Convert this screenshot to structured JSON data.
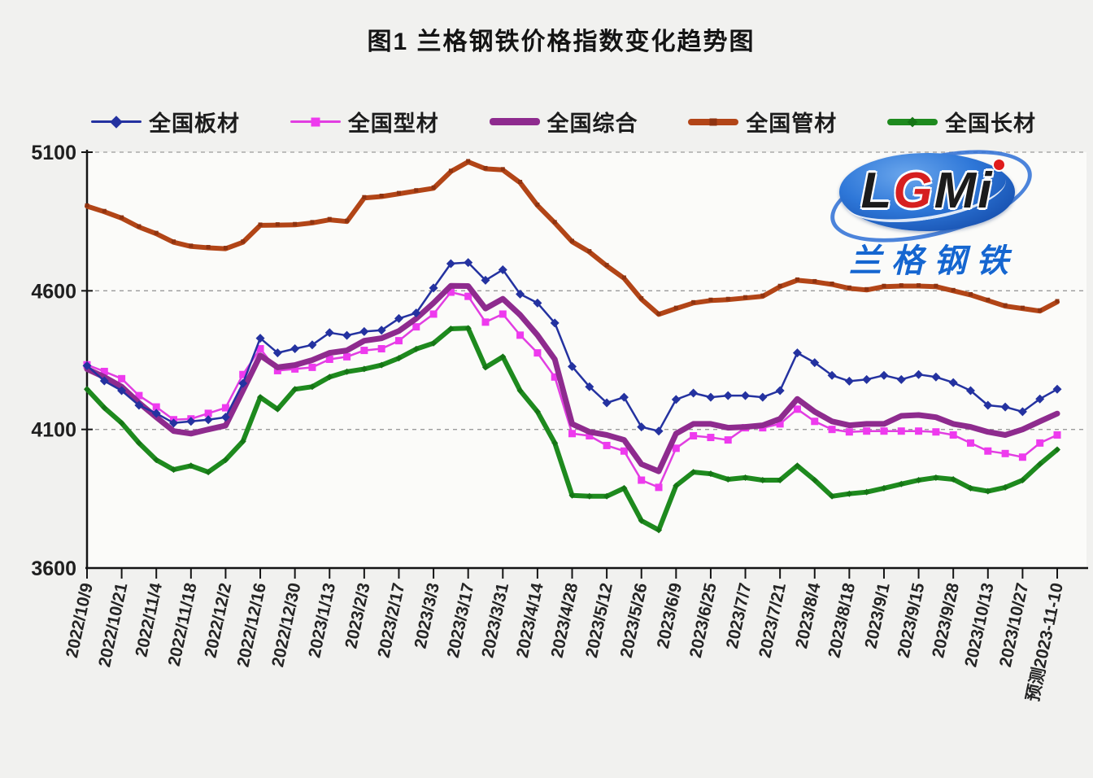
{
  "page": {
    "title": "图1 兰格钢铁价格指数变化趋势图"
  },
  "watermark": {
    "l": "L",
    "g": "G",
    "m": "M",
    "i": "i",
    "sub": "兰格钢铁"
  },
  "chart_data": {
    "type": "line",
    "title": "图1 兰格钢铁价格指数变化趋势图",
    "ylim": [
      3600,
      5100
    ],
    "yticks": [
      5100,
      4600,
      4100,
      3600
    ],
    "grid": "horizontal dashed at 5100/4600/4100, solid x-axis at 3600",
    "legend_position": "top",
    "x_labels": [
      "2022/10/9",
      "2022/10/21",
      "2022/11/4",
      "2022/11/18",
      "2022/12/2",
      "2022/12/16",
      "2022/12/30",
      "2023/1/13",
      "2023/2/3",
      "2023/2/17",
      "2023/3/3",
      "2023/3/17",
      "2023/3/31",
      "2023/4/14",
      "2023/4/28",
      "2023/5/12",
      "2023/5/26",
      "2023/6/9",
      "2023/6/25",
      "2023/7/7",
      "2023/7/21",
      "2023/8/4",
      "2023/8/18",
      "2023/9/1",
      "2023/9/15",
      "2023/9/28",
      "2023/10/13",
      "2023/10/27",
      "预测2023-11-10"
    ],
    "x_note": "labels sit on every second weekly data point (57 weekly points total); last point is a forecast",
    "series": [
      {
        "name": "全国板材",
        "color": "#2432a0",
        "marker": "diamond",
        "marker_color": "#2432a0",
        "width": 2.5,
        "values": [
          4330,
          4275,
          4240,
          4187,
          4158,
          4123,
          4129,
          4135,
          4144,
          4266,
          4429,
          4376,
          4391,
          4405,
          4449,
          4439,
          4453,
          4458,
          4500,
          4520,
          4610,
          4698,
          4702,
          4638,
          4676,
          4588,
          4556,
          4484,
          4327,
          4254,
          4196,
          4216,
          4109,
          4094,
          4208,
          4231,
          4216,
          4222,
          4222,
          4216,
          4240,
          4376,
          4341,
          4295,
          4274,
          4280,
          4295,
          4280,
          4298,
          4289,
          4269,
          4240,
          4187,
          4181,
          4164,
          4210,
          4245
        ]
      },
      {
        "name": "全国型材",
        "color": "#e13ee1",
        "marker": "square",
        "marker_color": "#ee3aee",
        "width": 2.5,
        "values": [
          4333,
          4309,
          4283,
          4222,
          4181,
          4135,
          4138,
          4158,
          4178,
          4298,
          4391,
          4312,
          4318,
          4324,
          4353,
          4362,
          4385,
          4391,
          4420,
          4470,
          4516,
          4595,
          4580,
          4487,
          4516,
          4440,
          4376,
          4289,
          4085,
          4077,
          4042,
          4022,
          3917,
          3891,
          4032,
          4077,
          4071,
          4062,
          4106,
          4106,
          4120,
          4173,
          4129,
          4100,
          4091,
          4094,
          4094,
          4094,
          4094,
          4091,
          4080,
          4051,
          4022,
          4013,
          4000,
          4051,
          4080
        ]
      },
      {
        "name": "全国综合",
        "color": "#8e2b8e",
        "marker": "none",
        "marker_color": "#8e2b8e",
        "width": 7,
        "values": [
          4318,
          4289,
          4254,
          4196,
          4144,
          4094,
          4085,
          4100,
          4114,
          4240,
          4367,
          4324,
          4332,
          4350,
          4376,
          4385,
          4420,
          4429,
          4455,
          4500,
          4556,
          4618,
          4617,
          4536,
          4571,
          4513,
          4440,
          4353,
          4120,
          4091,
          4080,
          4062,
          3975,
          3949,
          4085,
          4120,
          4120,
          4106,
          4109,
          4115,
          4138,
          4210,
          4164,
          4129,
          4115,
          4120,
          4120,
          4149,
          4152,
          4144,
          4120,
          4109,
          4091,
          4080,
          4100,
          4129,
          4157
        ]
      },
      {
        "name": "全国管材",
        "color": "#b24517",
        "marker": "small-square",
        "marker_color": "#8f3310",
        "width": 6,
        "values": [
          4905,
          4885,
          4862,
          4830,
          4806,
          4775,
          4760,
          4755,
          4752,
          4775,
          4836,
          4837,
          4838,
          4845,
          4856,
          4850,
          4935,
          4940,
          4950,
          4960,
          4970,
          5030,
          5065,
          5040,
          5036,
          4990,
          4908,
          4845,
          4777,
          4740,
          4690,
          4645,
          4570,
          4515,
          4536,
          4556,
          4565,
          4568,
          4574,
          4580,
          4615,
          4638,
          4632,
          4623,
          4609,
          4603,
          4615,
          4617,
          4617,
          4615,
          4600,
          4585,
          4565,
          4545,
          4536,
          4527,
          4560
        ]
      },
      {
        "name": "全国长材",
        "color": "#1e8a1e",
        "marker": "small-diamond",
        "marker_color": "#157515",
        "width": 6,
        "values": [
          4245,
          4178,
          4123,
          4051,
          3990,
          3955,
          3969,
          3946,
          3990,
          4057,
          4216,
          4173,
          4245,
          4254,
          4289,
          4308,
          4318,
          4332,
          4357,
          4390,
          4411,
          4463,
          4465,
          4324,
          4362,
          4240,
          4164,
          4051,
          3862,
          3859,
          3859,
          3888,
          3771,
          3737,
          3897,
          3946,
          3940,
          3920,
          3926,
          3917,
          3917,
          3969,
          3917,
          3859,
          3868,
          3874,
          3888,
          3903,
          3917,
          3926,
          3920,
          3888,
          3877,
          3891,
          3917,
          3975,
          4027
        ]
      }
    ],
    "draw_order": [
      1,
      2,
      4,
      3,
      0
    ]
  }
}
